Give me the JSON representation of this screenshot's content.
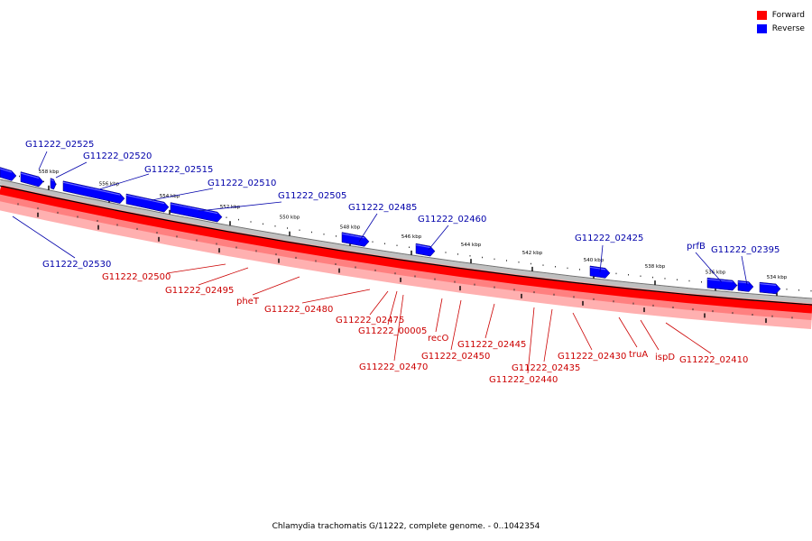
{
  "caption": "Chlamydia trachomatis G/11222, complete genome. - 0..1042354",
  "legend": [
    {
      "label": "Forward",
      "color": "#ff0000"
    },
    {
      "label": "Reverse",
      "color": "#0000ff"
    }
  ],
  "colors": {
    "forward": "#ff0000",
    "reverse": "#0000ff",
    "forward_label": "#cc0000",
    "reverse_label": "#0000aa"
  },
  "kbp_labels": [
    "558 kbp",
    "556 kbp",
    "554 kbp",
    "552 kbp",
    "550 kbp",
    "548 kbp",
    "546 kbp",
    "544 kbp",
    "542 kbp",
    "540 kbp",
    "538 kbp",
    "536 kbp",
    "534 kbp"
  ],
  "reverse_genes": [
    "G11222_02525",
    "G11222_02520",
    "G11222_02515",
    "G11222_02510",
    "G11222_02505",
    "G11222_02485",
    "G11222_02460",
    "G11222_02425",
    "prfB",
    "G11222_02395",
    "G11222_02530"
  ],
  "forward_genes": [
    "G11222_02500",
    "G11222_02495",
    "pheT",
    "G11222_02480",
    "G11222_02475",
    "G11222_00005",
    "recO",
    "G11222_02470",
    "G11222_02450",
    "G11222_02445",
    "G11222_02440",
    "G11222_02435",
    "G11222_02430",
    "truA",
    "ispD",
    "G11222_02410"
  ]
}
